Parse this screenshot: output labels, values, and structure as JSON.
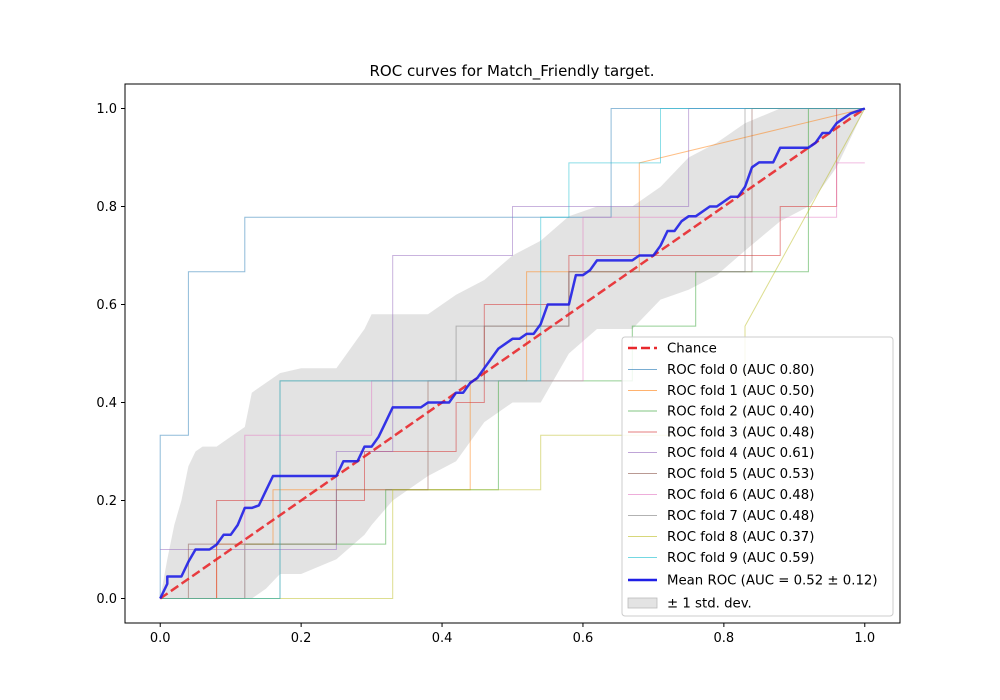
{
  "chart_data": {
    "type": "line",
    "title": "ROC curves for Match_Friendly target.",
    "xlabel": "",
    "ylabel": "",
    "xlim": [
      -0.05,
      1.05
    ],
    "ylim": [
      -0.05,
      1.05
    ],
    "xticks": [
      "0.0",
      "0.2",
      "0.4",
      "0.6",
      "0.8",
      "1.0"
    ],
    "yticks": [
      "0.0",
      "0.2",
      "0.4",
      "0.6",
      "0.8",
      "1.0"
    ],
    "legend_position": "lower-right",
    "colors": {
      "chance": "#e8282c",
      "mean": "#1f1fe6",
      "band": "#c8c8c8",
      "folds": [
        "#1f77b4",
        "#ff7f0e",
        "#2ca02c",
        "#d62728",
        "#9467bd",
        "#8c564b",
        "#e377c2",
        "#7f7f7f",
        "#bcbd22",
        "#17becf"
      ]
    },
    "chance": {
      "name": "Chance",
      "x": [
        0,
        1
      ],
      "y": [
        0,
        1
      ]
    },
    "folds": [
      {
        "name": "ROC fold 0 (AUC 0.80)",
        "x": [
          0,
          0,
          0.04,
          0.04,
          0.12,
          0.12,
          0.64,
          0.64,
          1
        ],
        "y": [
          0,
          0.333,
          0.333,
          0.667,
          0.667,
          0.778,
          0.778,
          1,
          1
        ]
      },
      {
        "name": "ROC fold 1 (AUC 0.50)",
        "x": [
          0,
          0.08,
          0.08,
          0.16,
          0.16,
          0.44,
          0.44,
          0.52,
          0.52,
          0.68,
          0.68,
          1
        ],
        "y": [
          0,
          0,
          0.111,
          0.111,
          0.222,
          0.222,
          0.444,
          0.444,
          0.667,
          0.667,
          0.889,
          1
        ]
      },
      {
        "name": "ROC fold 2 (AUC 0.40)",
        "x": [
          0,
          0.12,
          0.12,
          0.32,
          0.32,
          0.48,
          0.48,
          0.67,
          0.67,
          0.76,
          0.76,
          0.92,
          0.92,
          1
        ],
        "y": [
          0,
          0,
          0.111,
          0.111,
          0.222,
          0.222,
          0.444,
          0.444,
          0.556,
          0.556,
          0.667,
          0.667,
          1,
          1
        ]
      },
      {
        "name": "ROC fold 3 (AUC 0.48)",
        "x": [
          0,
          0.08,
          0.08,
          0.29,
          0.29,
          0.42,
          0.42,
          0.46,
          0.46,
          0.58,
          0.58,
          0.88,
          0.88,
          0.96,
          0.96,
          1
        ],
        "y": [
          0,
          0,
          0.2,
          0.2,
          0.3,
          0.3,
          0.4,
          0.4,
          0.6,
          0.6,
          0.7,
          0.7,
          0.8,
          0.8,
          1,
          1
        ]
      },
      {
        "name": "ROC fold 4 (AUC 0.61)",
        "x": [
          0,
          0.25,
          0.25,
          0.33,
          0.33,
          0.5,
          0.5,
          0.75,
          0.75,
          1
        ],
        "y": [
          0.1,
          0.1,
          0.3,
          0.3,
          0.7,
          0.7,
          0.8,
          0.8,
          1,
          1
        ]
      },
      {
        "name": "ROC fold 5 (AUC 0.53)",
        "x": [
          0,
          0.04,
          0.04,
          0.25,
          0.25,
          0.38,
          0.38,
          0.46,
          0.46,
          0.58,
          0.58,
          0.84,
          0.84,
          1
        ],
        "y": [
          0,
          0,
          0.111,
          0.111,
          0.222,
          0.222,
          0.444,
          0.444,
          0.556,
          0.556,
          0.667,
          0.667,
          1,
          1
        ]
      },
      {
        "name": "ROC fold 6 (AUC 0.48)",
        "x": [
          0,
          0.12,
          0.12,
          0.3,
          0.3,
          0.6,
          0.6,
          0.96,
          0.96,
          1
        ],
        "y": [
          0,
          0,
          0.333,
          0.333,
          0.444,
          0.444,
          0.778,
          0.778,
          0.889,
          0.889
        ]
      },
      {
        "name": "ROC fold 7 (AUC 0.48)",
        "x": [
          0,
          0.17,
          0.17,
          0.42,
          0.42,
          0.58,
          0.58,
          0.83,
          0.83,
          1
        ],
        "y": [
          0,
          0,
          0.444,
          0.444,
          0.556,
          0.556,
          0.667,
          0.667,
          1,
          1
        ]
      },
      {
        "name": "ROC fold 8 (AUC 0.37)",
        "x": [
          0,
          0.33,
          0.33,
          0.54,
          0.54,
          0.83,
          0.83,
          1
        ],
        "y": [
          0,
          0,
          0.222,
          0.222,
          0.333,
          0.333,
          0.556,
          1
        ]
      },
      {
        "name": "ROC fold 9 (AUC 0.59)",
        "x": [
          0,
          0.17,
          0.17,
          0.54,
          0.54,
          0.58,
          0.58,
          0.71,
          0.71,
          1
        ],
        "y": [
          0,
          0,
          0.444,
          0.444,
          0.778,
          0.778,
          0.889,
          0.889,
          1,
          1
        ]
      }
    ],
    "mean": {
      "name": "Mean ROC (AUC = 0.52 ± 0.12)",
      "x": [
        0,
        0.01,
        0.01,
        0.03,
        0.04,
        0.05,
        0.07,
        0.08,
        0.09,
        0.1,
        0.11,
        0.12,
        0.13,
        0.14,
        0.15,
        0.16,
        0.17,
        0.25,
        0.26,
        0.28,
        0.29,
        0.3,
        0.31,
        0.32,
        0.33,
        0.37,
        0.38,
        0.41,
        0.42,
        0.43,
        0.44,
        0.45,
        0.46,
        0.47,
        0.48,
        0.49,
        0.5,
        0.51,
        0.52,
        0.53,
        0.54,
        0.55,
        0.58,
        0.59,
        0.6,
        0.61,
        0.62,
        0.67,
        0.68,
        0.7,
        0.71,
        0.72,
        0.73,
        0.74,
        0.75,
        0.76,
        0.78,
        0.79,
        0.81,
        0.82,
        0.83,
        0.84,
        0.85,
        0.87,
        0.88,
        0.92,
        0.93,
        0.94,
        0.95,
        0.96,
        0.97,
        0.98,
        1
      ],
      "y": [
        0,
        0.03,
        0.045,
        0.045,
        0.075,
        0.1,
        0.1,
        0.11,
        0.13,
        0.13,
        0.15,
        0.185,
        0.185,
        0.19,
        0.22,
        0.25,
        0.25,
        0.25,
        0.28,
        0.28,
        0.31,
        0.31,
        0.33,
        0.36,
        0.39,
        0.39,
        0.4,
        0.4,
        0.42,
        0.42,
        0.44,
        0.45,
        0.47,
        0.49,
        0.51,
        0.52,
        0.53,
        0.53,
        0.54,
        0.54,
        0.56,
        0.6,
        0.6,
        0.66,
        0.66,
        0.67,
        0.69,
        0.69,
        0.7,
        0.7,
        0.72,
        0.75,
        0.75,
        0.77,
        0.78,
        0.78,
        0.8,
        0.8,
        0.82,
        0.82,
        0.84,
        0.88,
        0.89,
        0.89,
        0.92,
        0.92,
        0.93,
        0.95,
        0.95,
        0.97,
        0.98,
        0.99,
        1
      ]
    },
    "band": {
      "name": "± 1 std. dev.",
      "x": [
        0,
        0.01,
        0.02,
        0.03,
        0.04,
        0.05,
        0.06,
        0.08,
        0.1,
        0.12,
        0.13,
        0.15,
        0.17,
        0.2,
        0.25,
        0.29,
        0.3,
        0.33,
        0.38,
        0.42,
        0.46,
        0.5,
        0.54,
        0.58,
        0.62,
        0.67,
        0.71,
        0.75,
        0.79,
        0.83,
        0.88,
        0.92,
        0.96,
        1
      ],
      "upper": [
        0,
        0.08,
        0.15,
        0.2,
        0.27,
        0.3,
        0.31,
        0.31,
        0.33,
        0.35,
        0.42,
        0.44,
        0.46,
        0.47,
        0.47,
        0.55,
        0.58,
        0.58,
        0.58,
        0.62,
        0.65,
        0.7,
        0.73,
        0.78,
        0.8,
        0.8,
        0.84,
        0.9,
        0.93,
        0.97,
        1,
        1,
        1,
        1
      ],
      "lower": [
        0,
        0,
        0,
        0,
        0,
        0,
        0,
        0,
        0,
        0,
        0,
        0.02,
        0.05,
        0.05,
        0.08,
        0.13,
        0.15,
        0.2,
        0.25,
        0.28,
        0.36,
        0.4,
        0.4,
        0.5,
        0.55,
        0.55,
        0.61,
        0.63,
        0.66,
        0.71,
        0.77,
        0.8,
        0.88,
        1
      ]
    }
  }
}
